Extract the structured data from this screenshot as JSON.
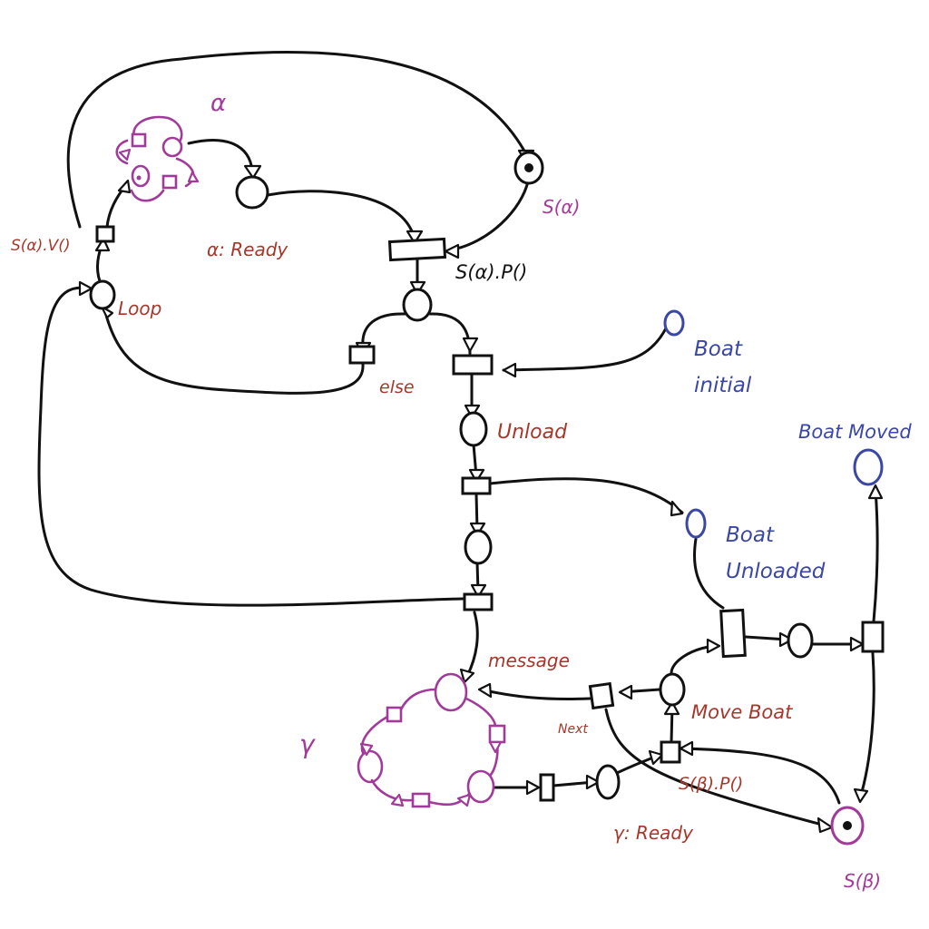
{
  "diagram": {
    "labels": {
      "alpha": "α",
      "gamma": "γ",
      "s_alpha": "S(α)",
      "s_alpha_v": "S(α).V()",
      "s_alpha_p": "S(α).P()",
      "alpha_ready": "α: Ready",
      "loop": "Loop",
      "else": "else",
      "unload": "Unload",
      "boat_initial_line1": "Boat",
      "boat_initial_line2": "initial",
      "boat_moved": "Boat Moved",
      "boat_unloaded_line1": "Boat",
      "boat_unloaded_line2": "Unloaded",
      "message": "message",
      "next": "Next",
      "move_boat": "Move Boat",
      "s_beta_p": "S(β).P()",
      "gamma_ready": "γ: Ready",
      "s_beta": "S(β)"
    },
    "colors": {
      "ink": "#111111",
      "process": "#a23a9a",
      "control_label": "#a8362a",
      "boat_label": "#3a47a6"
    }
  }
}
